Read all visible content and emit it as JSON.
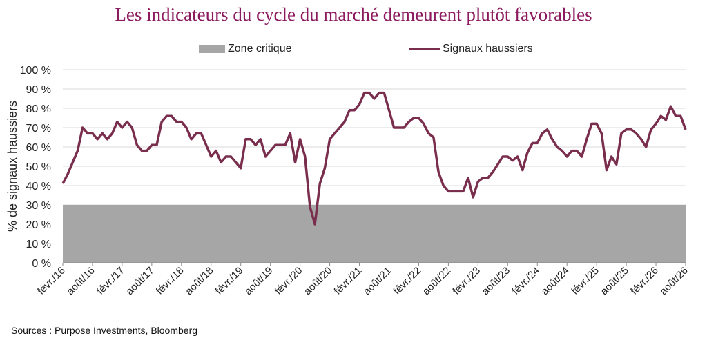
{
  "chart_data": {
    "type": "area+line",
    "title": "Les indicateurs du cycle du marché demeurent plutôt favorables",
    "ylabel": "% de signaux haussiers",
    "source": "Sources : Purpose Investments, Bloomberg",
    "ylim": [
      0,
      100
    ],
    "yticks": [
      "0 %",
      "10 %",
      "20 %",
      "30 %",
      "40 %",
      "50 %",
      "60 %",
      "70 %",
      "80 %",
      "90 %",
      "100 %"
    ],
    "xticks": [
      "févr./16",
      "août/16",
      "févr./17",
      "août/17",
      "févr./18",
      "août/18",
      "févr./19",
      "août/19",
      "févr./20",
      "août/20",
      "févr./21",
      "août/21",
      "févr./22",
      "août/22",
      "févr./23",
      "août/23",
      "févr./24",
      "août/24",
      "févr./25",
      "août/25",
      "févr./26",
      "août/26"
    ],
    "grid": "horizontal",
    "legend_position": "top",
    "series": [
      {
        "name": "Zone critique",
        "kind": "area",
        "color": "#a6a6a6",
        "value": 30
      },
      {
        "name": "Signaux haussiers",
        "kind": "line",
        "color": "#7a2e4d",
        "values": [
          41,
          46,
          52,
          58,
          70,
          67,
          67,
          64,
          67,
          64,
          67,
          73,
          70,
          73,
          70,
          61,
          58,
          58,
          61,
          61,
          73,
          76,
          76,
          73,
          73,
          70,
          64,
          67,
          67,
          61,
          55,
          58,
          52,
          55,
          55,
          52,
          49,
          64,
          64,
          61,
          64,
          55,
          58,
          61,
          61,
          61,
          67,
          52,
          64,
          55,
          29,
          20,
          41,
          49,
          64,
          67,
          70,
          73,
          79,
          79,
          82,
          88,
          88,
          85,
          88,
          88,
          79,
          70,
          70,
          70,
          73,
          75,
          75,
          72,
          67,
          65,
          47,
          40,
          37,
          37,
          37,
          37,
          44,
          34,
          42,
          44,
          44,
          47,
          51,
          55,
          55,
          53,
          55,
          48,
          57,
          62,
          62,
          67,
          69,
          64,
          60,
          58,
          55,
          58,
          58,
          55,
          64,
          72,
          72,
          67,
          48,
          55,
          51,
          67,
          69,
          69,
          67,
          64,
          60,
          69,
          72,
          76,
          74,
          81,
          76,
          76,
          69
        ]
      }
    ]
  }
}
